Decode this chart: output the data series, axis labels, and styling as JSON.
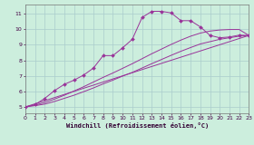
{
  "xlabel": "Windchill (Refroidissement éolien,°C)",
  "background_color": "#cceedd",
  "line_color": "#993399",
  "grid_color": "#aacccc",
  "xlim": [
    0,
    23
  ],
  "ylim": [
    4.6,
    11.6
  ],
  "yticks": [
    5,
    6,
    7,
    8,
    9,
    10,
    11
  ],
  "xticks": [
    0,
    1,
    2,
    3,
    4,
    5,
    6,
    7,
    8,
    9,
    10,
    11,
    12,
    13,
    14,
    15,
    16,
    17,
    18,
    19,
    20,
    21,
    22,
    23
  ],
  "series": [
    {
      "x": [
        0,
        23
      ],
      "y": [
        5.0,
        9.6
      ],
      "markers": false
    },
    {
      "x": [
        0,
        1,
        2,
        3,
        4,
        5,
        6,
        7,
        8,
        9,
        10,
        11,
        12,
        13,
        14,
        15,
        16,
        17,
        18,
        19,
        20,
        21,
        22,
        23
      ],
      "y": [
        5.0,
        5.08,
        5.18,
        5.35,
        5.55,
        5.75,
        5.98,
        6.22,
        6.48,
        6.72,
        6.98,
        7.22,
        7.5,
        7.78,
        8.05,
        8.32,
        8.58,
        8.82,
        9.05,
        9.2,
        9.35,
        9.45,
        9.55,
        9.6
      ],
      "markers": false
    },
    {
      "x": [
        0,
        1,
        2,
        3,
        4,
        5,
        6,
        7,
        8,
        9,
        10,
        11,
        12,
        13,
        14,
        15,
        16,
        17,
        18,
        19,
        20,
        21,
        22,
        23
      ],
      "y": [
        5.0,
        5.12,
        5.28,
        5.5,
        5.75,
        6.02,
        6.3,
        6.6,
        6.9,
        7.18,
        7.48,
        7.78,
        8.1,
        8.42,
        8.72,
        9.02,
        9.3,
        9.55,
        9.75,
        9.88,
        9.95,
        9.98,
        9.98,
        9.6
      ],
      "markers": false
    },
    {
      "x": [
        0,
        1,
        2,
        3,
        4,
        5,
        6,
        7,
        8,
        9,
        10,
        11,
        12,
        13,
        14,
        15,
        16,
        17,
        18,
        19,
        20,
        21,
        22,
        23
      ],
      "y": [
        5.0,
        5.15,
        5.55,
        6.05,
        6.45,
        6.72,
        7.05,
        7.5,
        8.3,
        8.3,
        8.8,
        9.35,
        10.75,
        11.15,
        11.15,
        11.05,
        10.55,
        10.55,
        10.15,
        9.6,
        9.45,
        9.5,
        9.62,
        9.6
      ],
      "markers": true
    }
  ]
}
